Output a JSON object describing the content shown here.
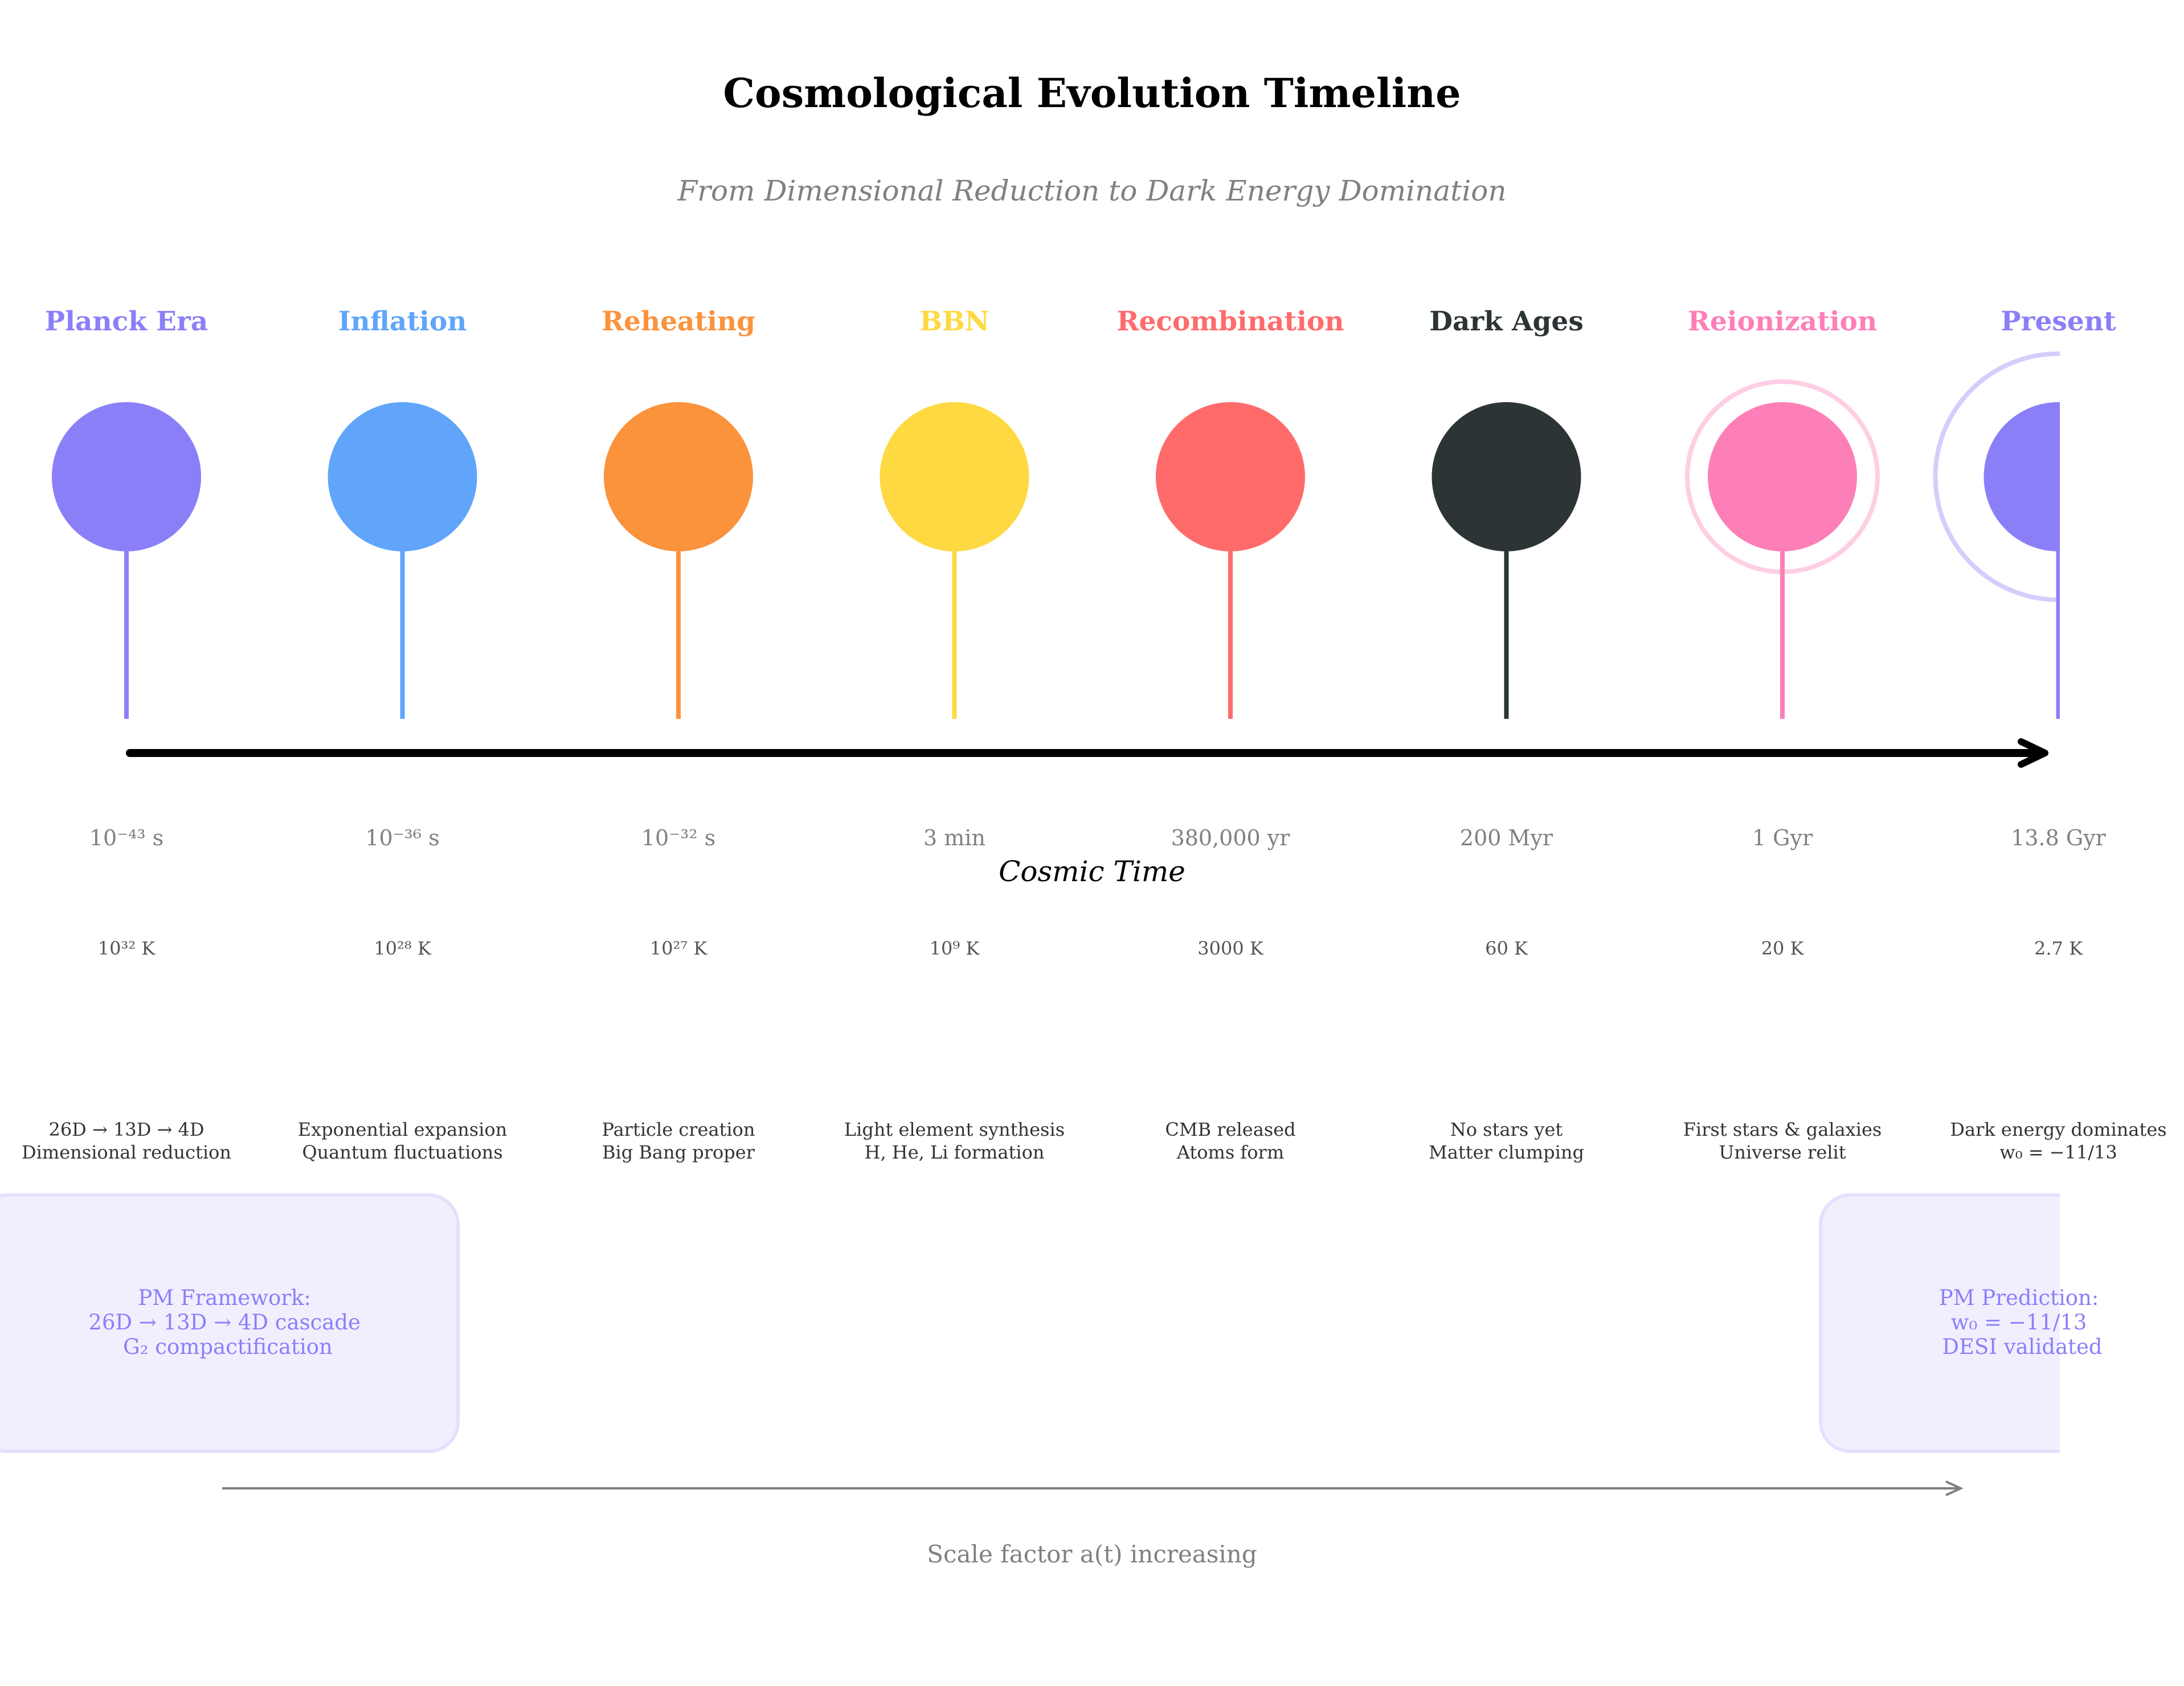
{
  "title": "Cosmological Evolution Timeline",
  "subtitle": "From Dimensional Reduction to Dark Energy Domination",
  "axis_label": "Cosmic Time",
  "events": [
    {
      "name": "Planck Era",
      "color": "#8b7ff8",
      "time": "10⁻⁴³ s",
      "temp": "10³² K",
      "desc": [
        "26D → 13D → 4D",
        "Dimensional reduction"
      ],
      "ring": false
    },
    {
      "name": "Inflation",
      "color": "#60a5fa",
      "time": "10⁻³⁶ s",
      "temp": "10²⁸ K",
      "desc": [
        "Exponential expansion",
        "Quantum fluctuations"
      ],
      "ring": false
    },
    {
      "name": "Reheating",
      "color": "#fb923c",
      "time": "10⁻³² s",
      "temp": "10²⁷ K",
      "desc": [
        "Particle creation",
        "Big Bang proper"
      ],
      "ring": false
    },
    {
      "name": "BBN",
      "color": "#fed941",
      "time": "3 min",
      "temp": "10⁹ K",
      "desc": [
        "Light element synthesis",
        "H, He, Li formation"
      ],
      "ring": false
    },
    {
      "name": "Recombination",
      "color": "#ff6b6b",
      "time": "380,000 yr",
      "temp": "3000 K",
      "desc": [
        "CMB released",
        "Atoms form"
      ],
      "ring": false
    },
    {
      "name": "Dark Ages",
      "color": "#2d3436",
      "time": "200 Myr",
      "temp": "60 K",
      "desc": [
        "No stars yet",
        "Matter clumping"
      ],
      "ring": false
    },
    {
      "name": "Reionization",
      "color": "#fd7fb8",
      "time": "1 Gyr",
      "temp": "20 K",
      "desc": [
        "First stars & galaxies",
        "Universe relit"
      ],
      "ring": true
    },
    {
      "name": "Present",
      "color": "#8b7ff8",
      "time": "13.8 Gyr",
      "temp": "2.7 K",
      "desc": [
        "Dark energy dominates",
        "w₀ = −11/13"
      ],
      "ring": true
    }
  ],
  "framework_box": [
    "PM Framework:",
    "26D → 13D → 4D cascade",
    "G₂ compactification"
  ],
  "prediction_box": [
    "PM Prediction:",
    "w₀ = −11/13",
    "DESI validated"
  ],
  "scale_label": "Scale factor a(t) increasing"
}
